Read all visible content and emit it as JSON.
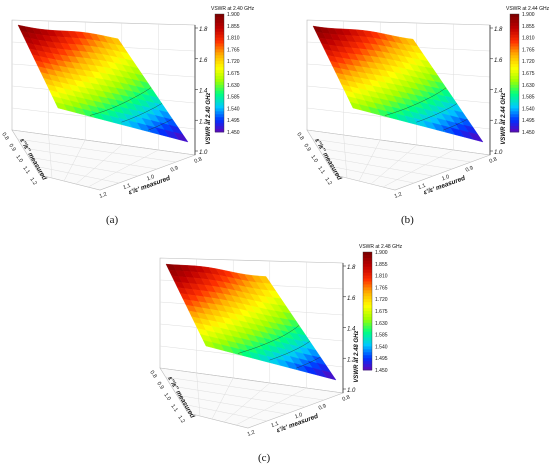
{
  "chart_data": [
    {
      "type": "surface",
      "panel": "(a)",
      "colorbar_title": "VSWR at 2.40 GHz",
      "colorbar_ticks": [
        "1.900",
        "1.855",
        "1.810",
        "1.765",
        "1.720",
        "1.675",
        "1.630",
        "1.585",
        "1.540",
        "1.495",
        "1.450"
      ],
      "zlabel": "VSWR at 2.40 GHz",
      "xlabel": "ε'/ε' measured",
      "ylabel": "ε''/ε'' measured",
      "z_ticks": [
        "1.8",
        "1.6",
        "1.4",
        "1.2",
        "1.0"
      ],
      "x_ticks": [
        "0.8",
        "0.9",
        "1.0",
        "1.1",
        "1.2"
      ],
      "y_ticks": [
        "0.8",
        "0.9",
        "1.0",
        "1.1",
        "1.2"
      ],
      "zlim": [
        1.45,
        1.9
      ],
      "colors": [
        "#6a00b0",
        "#0030ff",
        "#00c8ff",
        "#00ff80",
        "#a0ff00",
        "#ffff00",
        "#ffb000",
        "#ff3000",
        "#c00000",
        "#800000"
      ]
    },
    {
      "type": "surface",
      "panel": "(b)",
      "colorbar_title": "VSWR at 2.44 GHz",
      "colorbar_ticks": [
        "1.900",
        "1.855",
        "1.810",
        "1.765",
        "1.720",
        "1.675",
        "1.630",
        "1.585",
        "1.540",
        "1.495",
        "1.450"
      ],
      "zlabel": "VSWR at 2.44 GHz",
      "xlabel": "ε'/ε' measured",
      "ylabel": "ε''/ε'' measured",
      "z_ticks": [
        "1.8",
        "1.6",
        "1.4",
        "1.2",
        "1.0"
      ],
      "x_ticks": [
        "0.8",
        "0.9",
        "1.0",
        "1.1",
        "1.2"
      ],
      "y_ticks": [
        "0.8",
        "0.9",
        "1.0",
        "1.1",
        "1.2"
      ],
      "zlim": [
        1.45,
        1.9
      ],
      "colors": [
        "#6a00b0",
        "#0030ff",
        "#00c8ff",
        "#00ff80",
        "#a0ff00",
        "#ffff00",
        "#ffb000",
        "#ff3000",
        "#c00000",
        "#800000"
      ]
    },
    {
      "type": "surface",
      "panel": "(c)",
      "colorbar_title": "VSWR at 2.48 GHz",
      "colorbar_ticks": [
        "1.900",
        "1.855",
        "1.810",
        "1.765",
        "1.720",
        "1.675",
        "1.630",
        "1.585",
        "1.540",
        "1.495",
        "1.450"
      ],
      "zlabel": "VSWR at 2.48 GHz",
      "xlabel": "ε'/ε' measured",
      "ylabel": "ε''/ε'' measured",
      "z_ticks": [
        "1.8",
        "1.6",
        "1.4",
        "1.2",
        "1.0"
      ],
      "x_ticks": [
        "0.8",
        "0.9",
        "1.0",
        "1.1",
        "1.2"
      ],
      "y_ticks": [
        "0.8",
        "0.9",
        "1.0",
        "1.1",
        "1.2"
      ],
      "zlim": [
        1.45,
        1.9
      ],
      "colors": [
        "#6a00b0",
        "#0030ff",
        "#00c8ff",
        "#00ff80",
        "#a0ff00",
        "#ffff00",
        "#ffb000",
        "#ff3000",
        "#c00000",
        "#800000"
      ]
    }
  ]
}
